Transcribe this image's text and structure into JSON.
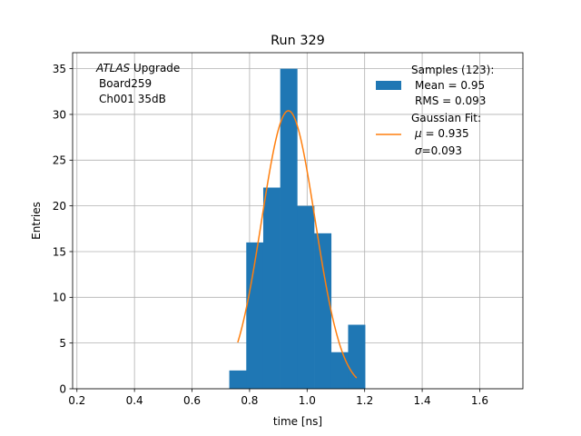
{
  "chart_data": {
    "type": "bar",
    "title": "Run 329",
    "xlabel": "time [ns]",
    "ylabel": "Entries",
    "xlim": [
      0.185,
      1.75
    ],
    "ylim": [
      0,
      36.75
    ],
    "xticks": [
      0.2,
      0.4,
      0.6,
      0.8,
      1.0,
      1.2,
      1.4,
      1.6
    ],
    "xtick_labels": [
      "0.2",
      "0.4",
      "0.6",
      "0.8",
      "1.0",
      "1.2",
      "1.4",
      "1.6"
    ],
    "yticks": [
      0,
      5,
      10,
      15,
      20,
      25,
      30,
      35
    ],
    "ytick_labels": [
      "0",
      "5",
      "10",
      "15",
      "20",
      "25",
      "30",
      "35"
    ],
    "grid": true,
    "legend_position": "top-right",
    "annotation": {
      "line1_italic": "ATLAS",
      "line1_rest": " Upgrade",
      "line2": "Board259",
      "line3": "Ch001 35dB"
    },
    "histogram": {
      "name": "Samples (123):",
      "color": "#1f77b4",
      "bin_edges": [
        0.7295,
        0.7885,
        0.8475,
        0.9065,
        0.9655,
        1.0245,
        1.0835,
        1.1425,
        1.2015
      ],
      "counts": [
        2,
        16,
        22,
        35,
        20,
        17,
        4,
        7
      ]
    },
    "fit": {
      "name": "Gaussian Fit:",
      "color": "#ff7f0e",
      "mu": 0.935,
      "sigma": 0.093,
      "amplitude": 30.4,
      "x_range": [
        0.759,
        1.172
      ]
    },
    "legend": {
      "hist_label": "Samples (123):",
      "hist_mean": "Mean = 0.95",
      "hist_rms": "RMS = 0.093",
      "fit_label": "Gaussian Fit:",
      "fit_mu_symbol": "μ",
      "fit_mu_value": " = 0.935",
      "fit_sigma_symbol": "σ",
      "fit_sigma_value": "=0.093"
    }
  }
}
